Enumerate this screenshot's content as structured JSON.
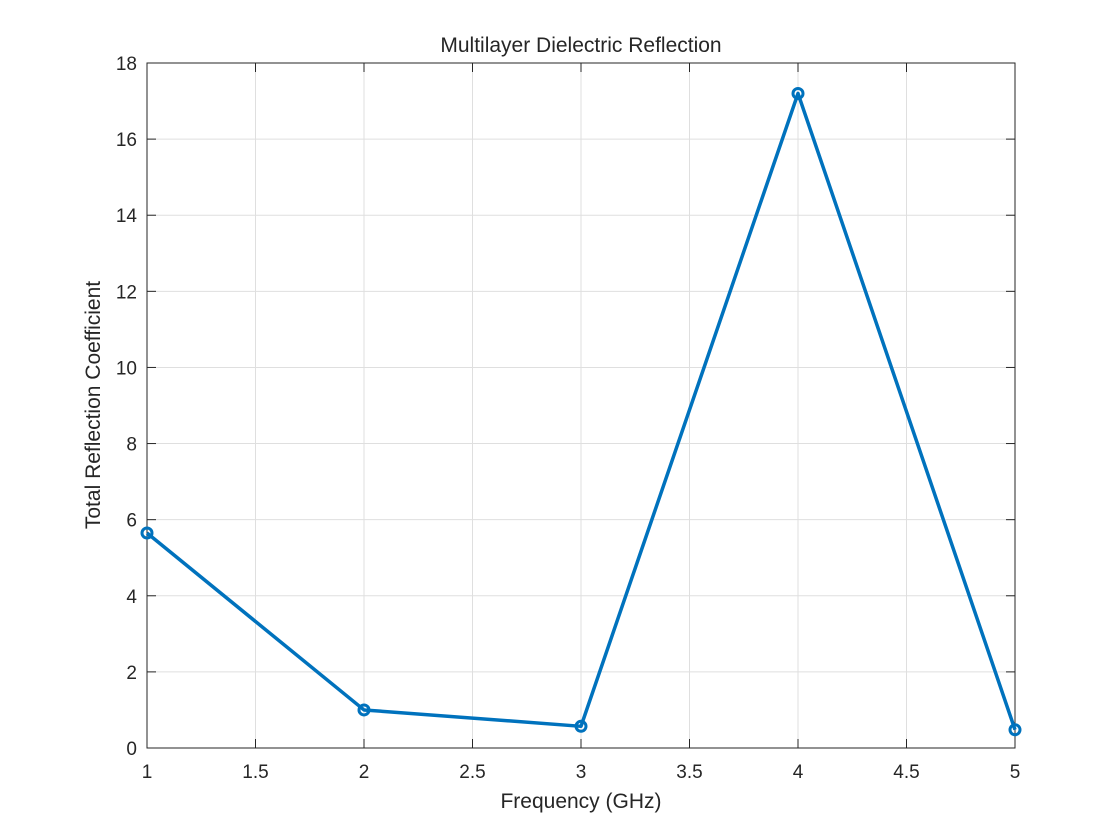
{
  "chart_data": {
    "type": "line",
    "title": "Multilayer Dielectric Reflection",
    "xlabel": "Frequency (GHz)",
    "ylabel": "Total Reflection Coefficient",
    "xlim": [
      1,
      5
    ],
    "ylim": [
      0,
      18
    ],
    "xticks": [
      1,
      1.5,
      2,
      2.5,
      3,
      3.5,
      4,
      4.5,
      5
    ],
    "xtick_labels": [
      "1",
      "1.5",
      "2",
      "2.5",
      "3",
      "3.5",
      "4",
      "4.5",
      "5"
    ],
    "yticks": [
      0,
      2,
      4,
      6,
      8,
      10,
      12,
      14,
      16,
      18
    ],
    "ytick_labels": [
      "0",
      "2",
      "4",
      "6",
      "8",
      "10",
      "12",
      "14",
      "16",
      "18"
    ],
    "grid": true,
    "marker": "circle",
    "series": [
      {
        "x": [
          1,
          2,
          3,
          4,
          5
        ],
        "values": [
          5.65,
          1.0,
          0.57,
          17.2,
          0.48
        ],
        "color": "#0072BD"
      }
    ]
  }
}
